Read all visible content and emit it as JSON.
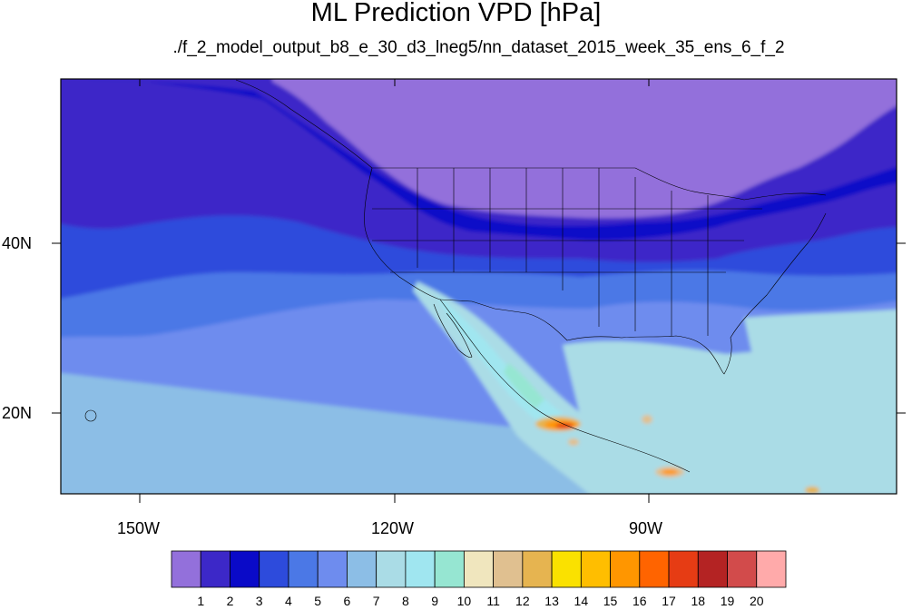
{
  "header": {
    "title": "ML Prediction VPD [hPa]",
    "subtitle": "./f_2_model_output_b8_e_30_d3_lneg5/nn_dataset_2015_week_35_ens_6_f_2"
  },
  "map": {
    "projection": "cylindrical-equidistant",
    "region": "North America and eastern Pacific",
    "lon_range": [
      -160,
      -62
    ],
    "lat_range": [
      10,
      59
    ],
    "lon_labels": [
      "150W",
      "120W",
      "90W"
    ],
    "lat_labels": [
      "40N",
      "20N"
    ],
    "boundaries": [
      "coastlines",
      "US states",
      "Canadian provinces",
      "Mexican states"
    ],
    "field": "VPD [hPa]"
  },
  "colorbar": {
    "orientation": "horizontal",
    "labels": [
      "1",
      "2",
      "3",
      "4",
      "5",
      "6",
      "7",
      "8",
      "9",
      "10",
      "11",
      "12",
      "13",
      "14",
      "15",
      "16",
      "17",
      "18",
      "19",
      "20"
    ],
    "colors": [
      "#9370db",
      "#3c28c8",
      "#0a0ac8",
      "#2d4bdc",
      "#4b78e6",
      "#6e8cee",
      "#8cbee6",
      "#aadce6",
      "#a0e6f0",
      "#96e6d2",
      "#f0e6be",
      "#e0c090",
      "#e6b450",
      "#fae100",
      "#ffbe00",
      "#ff9600",
      "#ff6400",
      "#e63c14",
      "#b42323",
      "#d24b4b",
      "#ffaaaa"
    ]
  }
}
